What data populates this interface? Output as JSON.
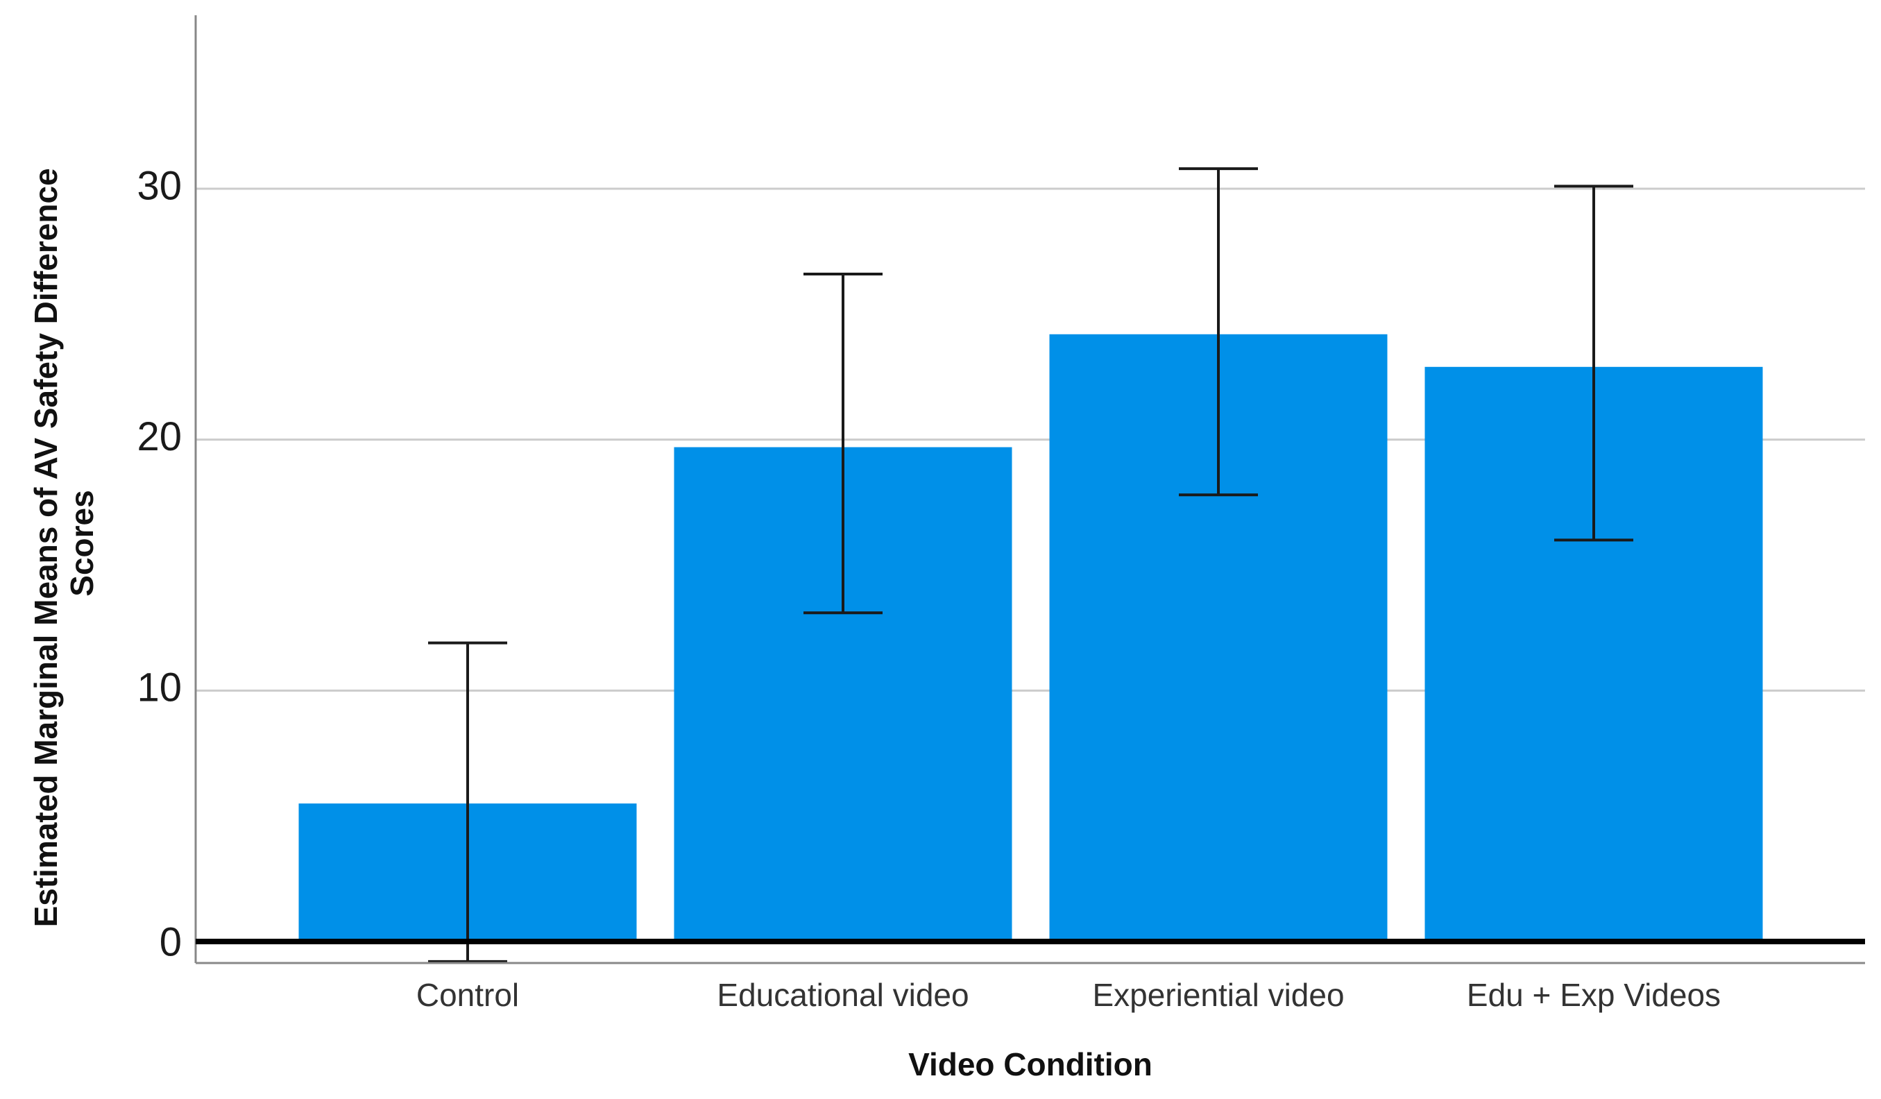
{
  "chart_data": {
    "type": "bar",
    "title": "",
    "xlabel": "Video Condition",
    "ylabel_lines": [
      "Estimated Marginal Means of AV Safety Difference",
      "Scores"
    ],
    "categories": [
      "Control",
      "Educational video",
      "Experiential video",
      "Edu + Exp Videos"
    ],
    "values": [
      5.5,
      19.7,
      24.2,
      22.9
    ],
    "error_low": [
      -0.8,
      13.1,
      17.8,
      16.0
    ],
    "error_high": [
      11.9,
      26.6,
      30.8,
      30.1
    ],
    "ylim": [
      -0.9,
      37.5
    ],
    "yticks": [
      0,
      10,
      20,
      30
    ],
    "ytick_labels": [
      "0",
      "10",
      "20",
      "30"
    ],
    "grid": true,
    "legend": "none",
    "bar_color": "#0090e8",
    "error_bar_color": "#1a1a1a",
    "grid_color": "#cccccc"
  }
}
